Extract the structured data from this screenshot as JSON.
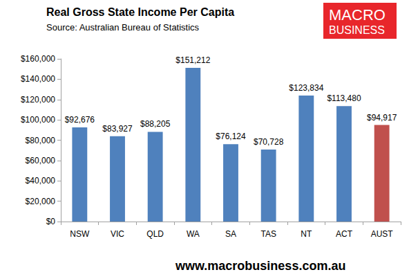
{
  "chart_data": {
    "type": "bar",
    "title": "Real Gross State Income Per Capita",
    "subtitle": "Source: Australian Bureau of Statistics",
    "logo_text": [
      "MACRO",
      "BUSINESS"
    ],
    "footer": "www.macrobusiness.com.au",
    "categories": [
      "NSW",
      "VIC",
      "QLD",
      "WA",
      "SA",
      "TAS",
      "NT",
      "ACT",
      "AUST"
    ],
    "values": [
      92676,
      83927,
      88205,
      151212,
      76124,
      70728,
      123834,
      113480,
      94917
    ],
    "value_labels": [
      "$92,676",
      "$83,927",
      "$88,205",
      "$151,212",
      "$76,124",
      "$70,728",
      "$123,834",
      "$113,480",
      "$94,917"
    ],
    "colors": [
      "#4f81bd",
      "#4f81bd",
      "#4f81bd",
      "#4f81bd",
      "#4f81bd",
      "#4f81bd",
      "#4f81bd",
      "#4f81bd",
      "#c0504d"
    ],
    "ylim": [
      0,
      160000
    ],
    "yticks": [
      {
        "value": 0,
        "label": "$0"
      },
      {
        "value": 20000,
        "label": "$20,000"
      },
      {
        "value": 40000,
        "label": "$40,000"
      },
      {
        "value": 60000,
        "label": "$60,000"
      },
      {
        "value": 80000,
        "label": "$80,000"
      },
      {
        "value": 100000,
        "label": "$100,000"
      },
      {
        "value": 120000,
        "label": "$120,000"
      },
      {
        "value": 140000,
        "label": "$140,000"
      },
      {
        "value": 160000,
        "label": "$160,000"
      }
    ],
    "grid": false,
    "data_labels": true
  }
}
